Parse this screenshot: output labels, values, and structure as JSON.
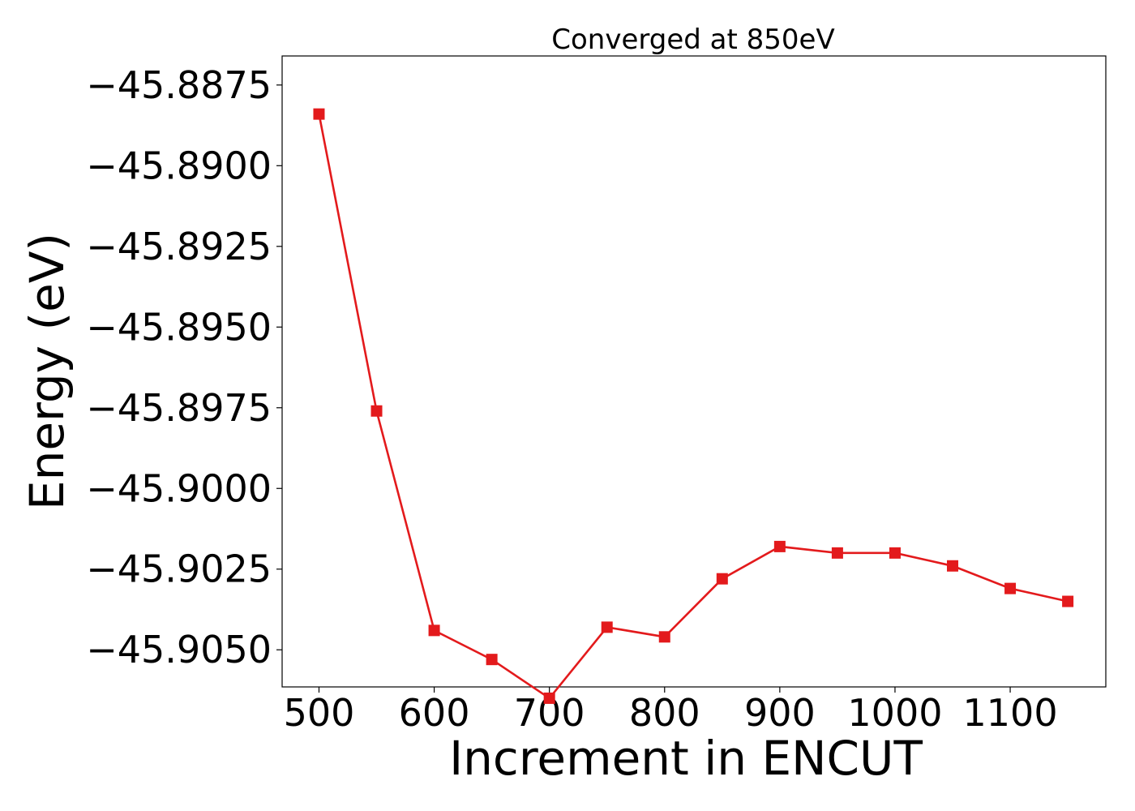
{
  "chart_data": {
    "type": "line",
    "title": "Converged at 850eV",
    "xlabel": "Increment in ENCUT",
    "ylabel": "Energy (eV)",
    "xlim": [
      468,
      1183
    ],
    "ylim": [
      -45.90615,
      -45.8866
    ],
    "xticks": [
      500,
      600,
      700,
      800,
      900,
      1000,
      1100
    ],
    "xtick_labels": [
      "500",
      "600",
      "700",
      "800",
      "900",
      "1000",
      "1100"
    ],
    "yticks": [
      -45.8875,
      -45.89,
      -45.8925,
      -45.895,
      -45.8975,
      -45.9,
      -45.9025,
      -45.905
    ],
    "ytick_labels": [
      "−45.8875",
      "−45.8900",
      "−45.8925",
      "−45.8950",
      "−45.8975",
      "−45.9000",
      "−45.9025",
      "−45.9050"
    ],
    "grid": false,
    "series": [
      {
        "color": "#e31a1c",
        "marker": "square",
        "x": [
          500,
          550,
          600,
          650,
          700,
          750,
          800,
          850,
          900,
          950,
          1000,
          1050,
          1100,
          1150
        ],
        "y": [
          -45.8884,
          -45.8976,
          -45.9044,
          -45.9053,
          -45.9065,
          -45.9043,
          -45.9046,
          -45.9028,
          -45.9018,
          -45.902,
          -45.902,
          -45.9024,
          -45.9031,
          -45.9035
        ]
      }
    ]
  }
}
